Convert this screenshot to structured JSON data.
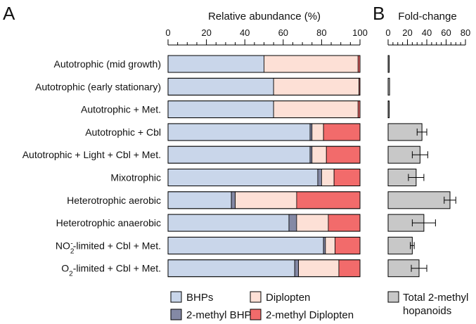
{
  "chart_data": [
    {
      "type": "bar",
      "orientation": "horizontal",
      "stacked": true,
      "panel_label": "A",
      "title": "Relative abundance (%)",
      "xlim": [
        0,
        100
      ],
      "x_ticks": [
        "0",
        "20",
        "40",
        "60",
        "80",
        "100"
      ],
      "categories": [
        "Autotrophic (mid growth)",
        "Autotrophic (early stationary)",
        "Autotrophic + Met.",
        "Autotrophic + Cbl",
        "Autotrophic + Light + Cbl + Met.",
        "Mixotrophic",
        "Heterotrophic aerobic",
        "Heterotrophic anaerobic",
        "NO2-limited + Cbl + Met.",
        "O2-limited + Cbl + Met."
      ],
      "series": [
        {
          "name": "BHPs",
          "color": "#c9d6ea",
          "values": [
            50,
            55,
            55,
            74,
            74,
            78,
            33,
            63,
            81,
            66
          ]
        },
        {
          "name": "2-methyl BHPs",
          "color": "#8489a5",
          "values": [
            0,
            0,
            0,
            1,
            1,
            2,
            2,
            4,
            1,
            2
          ]
        },
        {
          "name": "Diplopten",
          "color": "#fde0d6",
          "values": [
            49,
            44.5,
            44,
            6,
            7.5,
            6.5,
            32,
            16.5,
            5,
            21
          ]
        },
        {
          "name": "2-methyl Diplopten",
          "color": "#f26b6b",
          "values": [
            1,
            0.5,
            1,
            19,
            17.5,
            13.5,
            33,
            16.5,
            13,
            11
          ]
        }
      ],
      "legend": {
        "position": "bottom",
        "entries": [
          "BHPs",
          "Diplopten",
          "2-methyl BHPs",
          "2-methyl Diplopten"
        ]
      }
    },
    {
      "type": "bar",
      "orientation": "horizontal",
      "panel_label": "B",
      "title": "Fold-change",
      "xlim": [
        0,
        80
      ],
      "x_ticks": [
        "0",
        "20",
        "40",
        "60",
        "80"
      ],
      "categories": [
        "Autotrophic (mid growth)",
        "Autotrophic (early stationary)",
        "Autotrophic + Met.",
        "Autotrophic + Cbl",
        "Autotrophic + Light + Cbl + Met.",
        "Mixotrophic",
        "Heterotrophic aerobic",
        "Heterotrophic anaerobic",
        "NO2-limited + Cbl + Met.",
        "O2-limited + Cbl + Met."
      ],
      "series": [
        {
          "name": "Total 2-methyl hopanoids",
          "color": "#c8c8c8",
          "values": [
            1,
            1.5,
            1,
            35,
            33,
            29,
            64,
            37,
            25,
            32
          ],
          "errors": [
            0.5,
            0.8,
            0.5,
            5,
            8,
            8,
            6,
            12,
            2,
            8
          ]
        }
      ],
      "legend": {
        "position": "bottom",
        "entries": [
          "Total 2-methyl hopanoids"
        ]
      }
    }
  ],
  "labels_display": {
    "panel_a": "A",
    "panel_b": "B",
    "title_a": "Relative abundance (%)",
    "title_b": "Fold-change",
    "legend_a": [
      {
        "text": "BHPs",
        "color": "#c9d6ea"
      },
      {
        "text": "2-methyl BHPs",
        "color": "#8489a5"
      },
      {
        "text": "Diplopten",
        "color": "#fde0d6"
      },
      {
        "text": "2-methyl Diplopten",
        "color": "#f26b6b"
      }
    ],
    "legend_b_line1": "Total 2-methyl",
    "legend_b_line2": "hopanoids",
    "row_labels": [
      "Autotrophic (mid growth)",
      "Autotrophic (early stationary)",
      "Autotrophic + Met.",
      "Autotrophic + Cbl",
      "Autotrophic + Light + Cbl + Met.",
      "Mixotrophic",
      "Heterotrophic aerobic",
      "Heterotrophic anaerobic",
      {
        "pre": "NO",
        "sub": "2",
        "sup": "-",
        "post": "-limited + Cbl + Met."
      },
      {
        "pre": "O",
        "sub": "2",
        "post": "-limited + Cbl + Met."
      }
    ]
  }
}
